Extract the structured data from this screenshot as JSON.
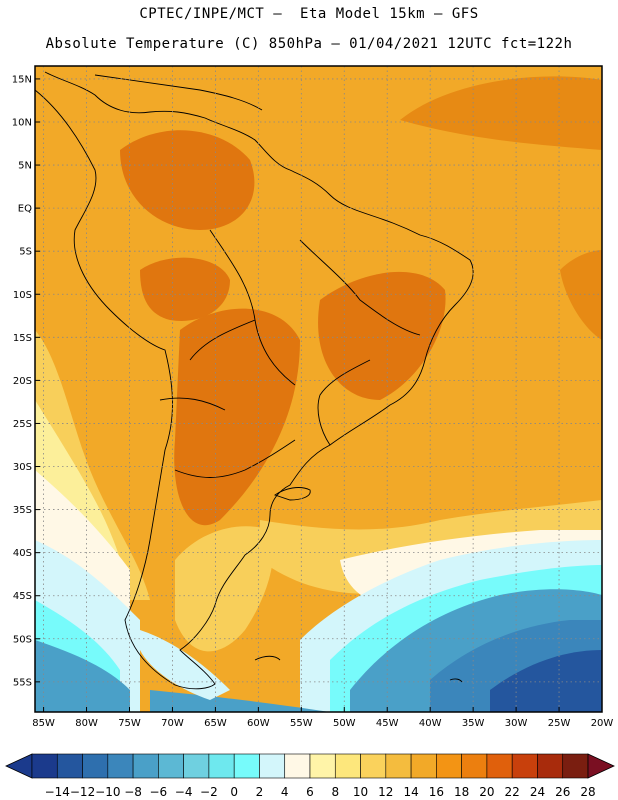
{
  "header": {
    "line1": "CPTEC/INPE/MCT –  Eta Model 15km – GFS",
    "line2": "Absolute Temperature (C) 850hPa – 01/04/2021 12UTC fct=122h"
  },
  "axes": {
    "lat_labels": [
      "15N",
      "10N",
      "5N",
      "EQ",
      "5S",
      "10S",
      "15S",
      "20S",
      "25S",
      "30S",
      "35S",
      "40S",
      "45S",
      "50S",
      "55S"
    ],
    "lon_labels": [
      "85W",
      "80W",
      "75W",
      "70W",
      "65W",
      "60W",
      "55W",
      "50W",
      "45W",
      "40W",
      "35W",
      "30W",
      "25W",
      "20W"
    ]
  },
  "legend": {
    "labels": [
      "-14",
      "-12",
      "-10",
      "-8",
      "-6",
      "-4",
      "-2",
      "0",
      "2",
      "4",
      "6",
      "8",
      "10",
      "12",
      "14",
      "16",
      "18",
      "20",
      "22",
      "24",
      "26",
      "28"
    ],
    "colors": [
      "#1b3a8c",
      "#24569e",
      "#2e6fae",
      "#3b86bb",
      "#4aa0c8",
      "#5cb8d4",
      "#6fd0e0",
      "#6ee8ee",
      "#77fbfb",
      "#d3f6fb",
      "#fff8e6",
      "#fff4a8",
      "#fde77c",
      "#fad25c",
      "#f4bc3e",
      "#f2a928",
      "#f39414",
      "#ec7f0f",
      "#e0600c",
      "#c8400c",
      "#a82b0c",
      "#7a1e10"
    ],
    "low_arrow_color": "#1b3a8c",
    "high_arrow_color": "#7a0f22"
  },
  "field_colors": {
    "ocean_warm": "#f2a928",
    "ocean_band": "#e78a14",
    "land_hot": "#e0760f",
    "tongue_yellow": "#f8cf5a",
    "pale_yellow": "#fcef9a",
    "cream": "#fff8e6",
    "light_cyan": "#d3f6fb",
    "cyan": "#77fbfb",
    "teal1": "#4aa0c8",
    "teal2": "#3b86bb",
    "deep_blue": "#24569e",
    "deepest": "#1b3a8c"
  }
}
